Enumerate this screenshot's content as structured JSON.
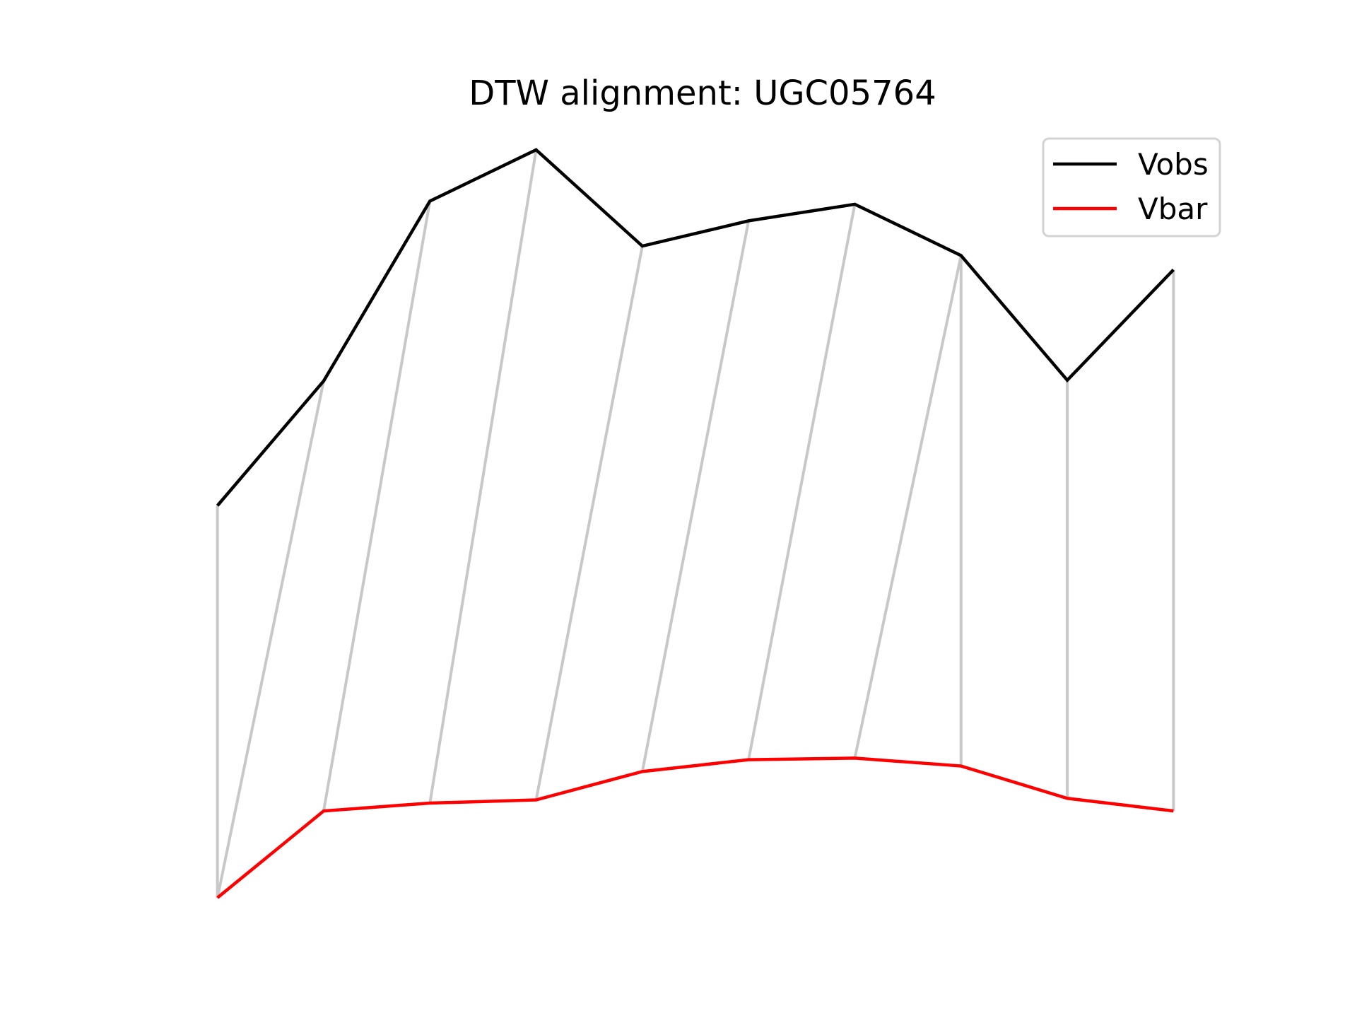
{
  "chart_data": {
    "type": "line",
    "title": "DTW alignment: UGC05764",
    "xlabel": "",
    "ylabel": "",
    "axes_visible": false,
    "grid": false,
    "legend_position": "top-right",
    "x": [
      0,
      1,
      2,
      3,
      4,
      5,
      6,
      7,
      8,
      9
    ],
    "ylim": [
      0,
      1
    ],
    "series": [
      {
        "name": "Vobs",
        "color": "#000000",
        "values": [
          0.515,
          0.673,
          0.901,
          0.966,
          0.844,
          0.876,
          0.897,
          0.832,
          0.674,
          0.814
        ]
      },
      {
        "name": "Vbar",
        "color": "#ff0000",
        "values": [
          0.018,
          0.128,
          0.138,
          0.142,
          0.178,
          0.193,
          0.195,
          0.185,
          0.144,
          0.128
        ]
      }
    ],
    "alignment": {
      "color": "#c8c8c8",
      "pairs": [
        [
          0,
          0
        ],
        [
          1,
          0
        ],
        [
          2,
          1
        ],
        [
          3,
          2
        ],
        [
          4,
          3
        ],
        [
          5,
          4
        ],
        [
          6,
          5
        ],
        [
          7,
          6
        ],
        [
          7,
          7
        ],
        [
          8,
          8
        ],
        [
          9,
          9
        ]
      ]
    }
  }
}
